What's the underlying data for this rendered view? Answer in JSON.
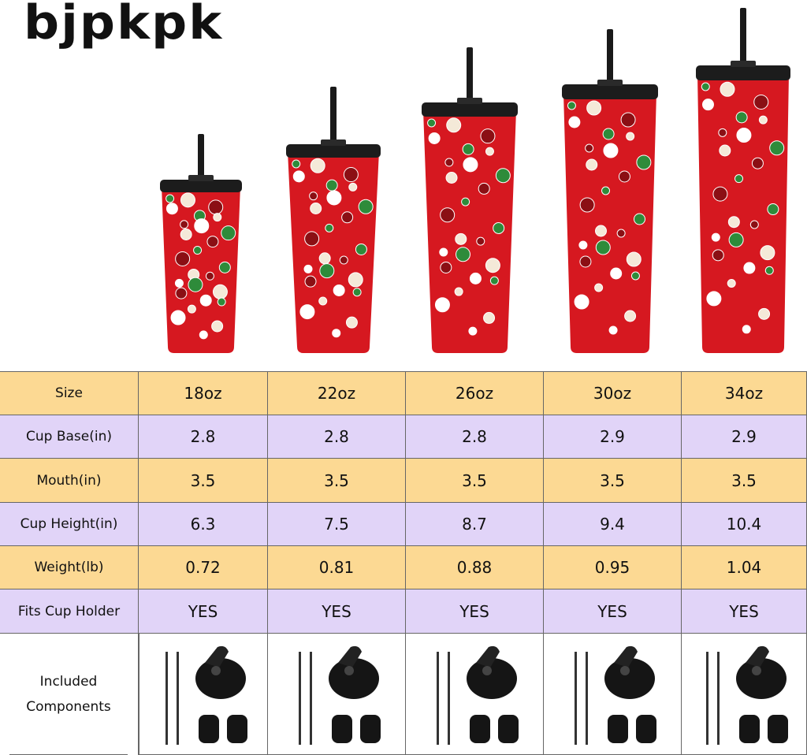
{
  "brand": "bjpkpk",
  "table": {
    "rows": [
      [
        "Size",
        "18oz",
        "22oz",
        "26oz",
        "30oz",
        "34oz"
      ],
      [
        "Cup Base(in)",
        "2.8",
        "2.8",
        "2.8",
        "2.9",
        "2.9"
      ],
      [
        "Mouth(in)",
        "3.5",
        "3.5",
        "3.5",
        "3.5",
        "3.5"
      ],
      [
        "Cup Height(in)",
        "6.3",
        "7.5",
        "8.7",
        "9.4",
        "10.4"
      ],
      [
        "Weight(lb)",
        "0.72",
        "0.81",
        "0.88",
        "0.95",
        "1.04"
      ],
      [
        "Fits Cup Holder",
        "YES",
        "YES",
        "YES",
        "YES",
        "YES"
      ],
      [
        "Included Components"
      ]
    ]
  }
}
